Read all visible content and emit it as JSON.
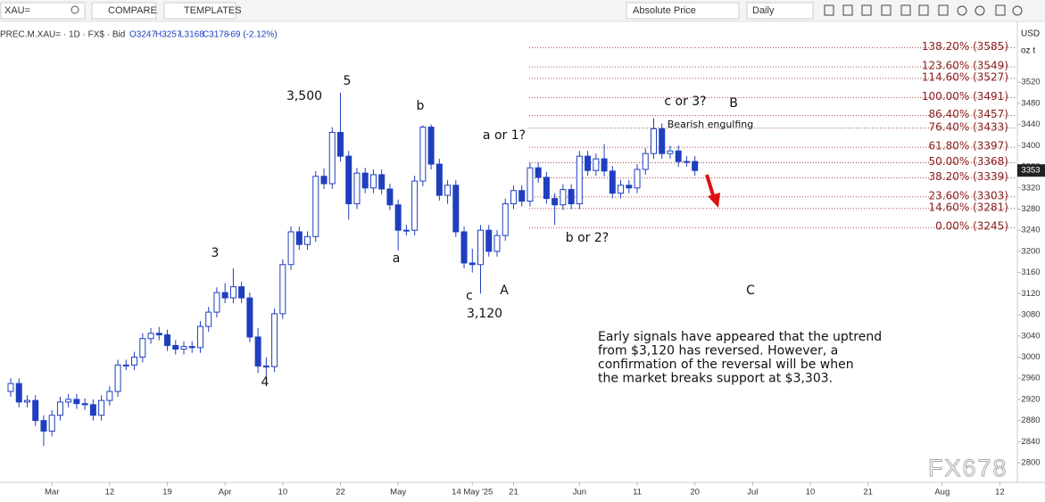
{
  "toolbar": {
    "search": "XAU=",
    "compare": "COMPARE",
    "templates": "TEMPLATES",
    "price_mode": "Absolute Price",
    "interval": "Daily"
  },
  "axis": {
    "currency": "USD",
    "unit": "oz t"
  },
  "watermark": "FX678",
  "chart_data": {
    "type": "candlestick",
    "legend": [
      "PREC.M.XAU= · 1D · FX$ · Bid",
      "O3247",
      "H3257",
      "L3168",
      "C3178",
      "-69 (-2.12%)"
    ],
    "color_up": "#ffffff",
    "color_down": "#1f3fbf",
    "color_line": "#1f3fbf",
    "last_price": 3353,
    "open": [
      2935,
      2950,
      2915,
      2918,
      2880,
      2860,
      2890,
      2915,
      2920,
      2912,
      2910,
      2890,
      2918,
      2935,
      2985,
      2985,
      3000,
      3035,
      3045,
      3042,
      3022,
      3015,
      3020,
      3018,
      3058,
      3085,
      3122,
      3112,
      3133,
      3112,
      3038,
      2983,
      2982,
      3082,
      3175,
      3237,
      3213,
      3228,
      3342,
      3328,
      3425,
      3380,
      3290,
      3348,
      3320,
      3345,
      3318,
      3288,
      3240,
      3240,
      3333,
      3435,
      3365,
      3306,
      3325,
      3237,
      3178,
      3175,
      3240,
      3200,
      3230,
      3290,
      3315,
      3295,
      3358,
      3340,
      3300,
      3288,
      3317,
      3290,
      3380,
      3353,
      3375,
      3352,
      3310,
      3325,
      3320,
      3355,
      3385,
      3432,
      3385,
      3390,
      3370,
      3370
    ],
    "high": [
      2960,
      2960,
      2928,
      2928,
      2890,
      2900,
      2925,
      2930,
      2930,
      2922,
      2920,
      2928,
      2945,
      2995,
      2995,
      3010,
      3045,
      3055,
      3057,
      3052,
      3032,
      3030,
      3030,
      3068,
      3095,
      3132,
      3140,
      3168,
      3143,
      3122,
      3055,
      3000,
      3092,
      3185,
      3247,
      3247,
      3238,
      3352,
      3357,
      3435,
      3500,
      3390,
      3358,
      3358,
      3355,
      3355,
      3328,
      3298,
      3250,
      3343,
      3438,
      3440,
      3375,
      3335,
      3335,
      3247,
      3205,
      3250,
      3250,
      3240,
      3300,
      3325,
      3325,
      3368,
      3368,
      3350,
      3310,
      3327,
      3327,
      3390,
      3390,
      3385,
      3403,
      3362,
      3335,
      3335,
      3365,
      3395,
      3452,
      3442,
      3400,
      3400,
      3380,
      3380
    ],
    "low": [
      2925,
      2905,
      2905,
      2870,
      2832,
      2850,
      2880,
      2905,
      2902,
      2900,
      2880,
      2880,
      2908,
      2925,
      2975,
      2975,
      2990,
      3025,
      3032,
      3012,
      3005,
      3005,
      3008,
      3008,
      3048,
      3075,
      3102,
      3102,
      3102,
      3028,
      2970,
      2958,
      2972,
      3072,
      3165,
      3203,
      3203,
      3218,
      3318,
      3318,
      3370,
      3260,
      3280,
      3310,
      3310,
      3308,
      3278,
      3202,
      3230,
      3230,
      3323,
      3355,
      3296,
      3290,
      3227,
      3168,
      3160,
      3120,
      3190,
      3190,
      3220,
      3280,
      3285,
      3285,
      3330,
      3290,
      3250,
      3278,
      3280,
      3280,
      3343,
      3343,
      3342,
      3300,
      3300,
      3310,
      3310,
      3345,
      3375,
      3375,
      3375,
      3360,
      3360,
      3343
    ],
    "close": [
      2950,
      2915,
      2918,
      2880,
      2860,
      2890,
      2915,
      2920,
      2912,
      2910,
      2890,
      2918,
      2935,
      2985,
      2985,
      3000,
      3035,
      3045,
      3042,
      3022,
      3015,
      3020,
      3018,
      3058,
      3085,
      3122,
      3112,
      3133,
      3112,
      3038,
      2983,
      2982,
      3082,
      3175,
      3237,
      3213,
      3228,
      3342,
      3328,
      3425,
      3380,
      3290,
      3348,
      3320,
      3345,
      3318,
      3288,
      3240,
      3240,
      3333,
      3435,
      3365,
      3306,
      3325,
      3237,
      3178,
      3175,
      3240,
      3200,
      3230,
      3290,
      3315,
      3295,
      3358,
      3340,
      3300,
      3288,
      3317,
      3290,
      3380,
      3353,
      3375,
      3352,
      3310,
      3325,
      3320,
      3355,
      3385,
      3432,
      3385,
      3390,
      3370,
      3370,
      3353
    ],
    "xlim": [
      -1.3,
      121.9
    ],
    "ylim": [
      2763,
      3635
    ],
    "xticks": [
      {
        "value": 5,
        "label": "Mar"
      },
      12,
      19,
      {
        "value": 26,
        "label": "Apr"
      },
      {
        "value": 33,
        "label": "10"
      },
      {
        "value": 40,
        "label": "22"
      },
      {
        "value": 47,
        "label": "May"
      },
      {
        "value": 56,
        "label": "14 May '25"
      },
      {
        "value": 61,
        "label": "21"
      },
      {
        "value": 69,
        "label": "Jun"
      },
      {
        "value": 76,
        "label": "11"
      },
      {
        "value": 83,
        "label": "20"
      },
      {
        "value": 90,
        "label": "Jul"
      },
      {
        "value": 97,
        "label": "10"
      },
      {
        "value": 104,
        "label": "21"
      },
      {
        "value": 113,
        "label": "Aug"
      },
      {
        "value": 120,
        "label": "12"
      }
    ],
    "yticks": [
      2800,
      2840,
      2880,
      2920,
      2960,
      3000,
      3040,
      3080,
      3120,
      3160,
      3200,
      3240,
      3280,
      3320,
      3360,
      3400,
      3440,
      3480,
      3520
    ],
    "fib_levels": [
      {
        "value": 3585,
        "label": "138.20% (3585)"
      },
      {
        "value": 3549,
        "label": "123.60% (3549)"
      },
      {
        "value": 3527,
        "label": "114.60% (3527)"
      },
      {
        "value": 3491,
        "label": "100.00% (3491)"
      },
      {
        "value": 3457,
        "label": "86.40% (3457)"
      },
      {
        "value": 3433,
        "label": "76.40% (3433)"
      },
      {
        "value": 3397,
        "label": "61.80% (3397)"
      },
      {
        "value": 3368,
        "label": "50.00% (3368)"
      },
      {
        "value": 3339,
        "label": "38.20% (3339)"
      },
      {
        "value": 3303,
        "label": "23.60% (3303)"
      },
      {
        "value": 3281,
        "label": "14.60% (3281)"
      },
      {
        "value": 3245,
        "label": "0.00% (3245)"
      }
    ],
    "annotations": [
      "5",
      "3,500",
      "3",
      "4",
      "b",
      "a",
      "a or 1?",
      "c",
      "3,120",
      "A",
      "b or 2?",
      "c or 3?",
      "B",
      "Bearish engulfing",
      "C"
    ],
    "note": [
      "Early signals have appeared that the uptrend",
      "from $3,120 has reversed. However, a",
      "confirmation of the reversal will be when",
      "the market breaks support at $3,303."
    ]
  }
}
